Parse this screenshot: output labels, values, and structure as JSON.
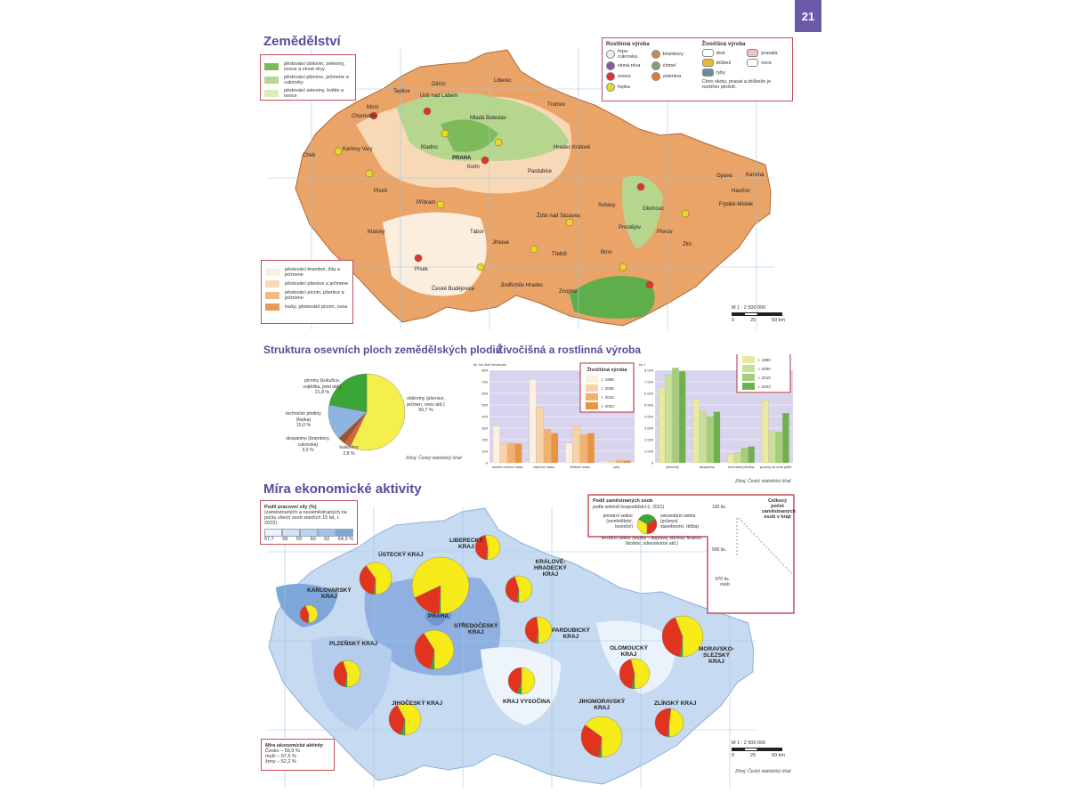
{
  "page_number": "21",
  "agriculture": {
    "title": "Zemědělství",
    "legend_top": [
      "pěstování obilovin, zeleniny, ovoce a vinné révy",
      "pěstování pšenice, ječmene a cukrovky",
      "pěstování zeleniny, květin a ovoce"
    ],
    "legend_top_colors": [
      "#7dbb5a",
      "#b5d68c",
      "#dcebb8"
    ],
    "legend_bottom": [
      "pěstování brambor, žita a ječmene",
      "pěstování pšenice a ječmene",
      "pěstování pícnin, pšenice a ječmene",
      "louky, pěstování pícnin, ovsa"
    ],
    "legend_bottom_colors": [
      "#fbeede",
      "#f7d9b8",
      "#f0b982",
      "#e59a55"
    ],
    "symbols": {
      "plant_title": "Rostlinná výroba",
      "plants": [
        "řepa cukrovka",
        "brambory",
        "vinná réva",
        "chmel",
        "ovoce",
        "zelenina",
        "řepka"
      ],
      "animal_title": "Živočišná výroba",
      "animals": [
        "skot",
        "prasata",
        "drůbež",
        "ovce",
        "ryby"
      ],
      "note": "Chov skotu, prasat a drůbeže je rozšířen plošně."
    },
    "cities": [
      "Cheb",
      "Karlovy Vary",
      "Chomutov",
      "Most",
      "Teplice",
      "Ústí nad Labem",
      "Děčín",
      "Liberec",
      "Mladá Boleslav",
      "Kladno",
      "PRAHA",
      "Kolín",
      "Hradec Králové",
      "Pardubice",
      "Trutnov",
      "Plzeň",
      "Příbram",
      "Klatovy",
      "Písek",
      "Tábor",
      "České Budějovice",
      "Jindřichův Hradec",
      "Jihlava",
      "Žďár nad Sázavou",
      "Třebíč",
      "Brno",
      "Znojmo",
      "Olomouc",
      "Prostějov",
      "Přerov",
      "Zlín",
      "Opava",
      "Karviná",
      "Havířov",
      "Frýdek-Místek",
      "Svitavy"
    ],
    "scale": {
      "ratio": "M 1 : 2 500 000",
      "ticks": [
        "0",
        "25",
        "50 km"
      ]
    }
  },
  "crops_pie": {
    "title": "Struktura osevních ploch zemědělských plodin",
    "source": "Zdroj: Český statistický úřad",
    "chart_data": {
      "type": "pie",
      "slices": [
        {
          "label": "obiloviny (pšenice, ječmen, oves atd.)",
          "value": 56.7,
          "text": "56,7 %",
          "color": "#f4ef4a"
        },
        {
          "label": "luskoviny",
          "value": 2.8,
          "text": "2,8 %",
          "color": "#d9643a"
        },
        {
          "label": "okopaniny (brambory, cukrovka)",
          "value": 3.0,
          "text": "3,0 %",
          "color": "#a0522d"
        },
        {
          "label": "technické plodiny (řepka)",
          "value": 15.0,
          "text": "15,0 %",
          "color": "#8fb4e0"
        },
        {
          "label": "pícniny (kukuřice, vojtěška, jetel atd.)",
          "value": 21.8,
          "text": "21,8 %",
          "color": "#3aa635"
        }
      ]
    }
  },
  "production": {
    "title": "Živočišná a rostlinná výroba",
    "source": "Zdroj: Český statistický úřad",
    "chart_data": [
      {
        "type": "bar",
        "legend_title": "Živočišná výroba",
        "ylabel": "tis. tun živé hmotnosti",
        "ylim": [
          0,
          800
        ],
        "yticks": [
          "0",
          "100",
          "200",
          "300",
          "400",
          "500",
          "600",
          "700",
          "800"
        ],
        "categories": [
          "hovězí a telecí maso",
          "vepřové maso",
          "drůbeží maso",
          "ryby"
        ],
        "series": [
          {
            "name": "r. 1995",
            "color": "#fdf0e0",
            "values": [
              320,
              720,
              170,
              15
            ]
          },
          {
            "name": "r. 2005",
            "color": "#f8d3a8",
            "values": [
              165,
              480,
              320,
              20
            ]
          },
          {
            "name": "r. 2015",
            "color": "#f2b26e",
            "values": [
              170,
              290,
              245,
              20
            ]
          },
          {
            "name": "r. 2023",
            "color": "#eb943e",
            "values": [
              165,
              255,
              255,
              18
            ]
          }
        ],
        "legend": "top-right"
      },
      {
        "type": "bar",
        "legend_title": "Rostlinná výroba",
        "ylabel": "tis. t",
        "ylim": [
          0,
          8000
        ],
        "yticks": [
          "0",
          "1 000",
          "2 000",
          "3 000",
          "4 000",
          "5 000",
          "6 000",
          "7 000",
          "8 000"
        ],
        "categories": [
          "obiloviny",
          "okopaniny",
          "technické plodiny",
          "pícniny na orné půdě"
        ],
        "series": [
          {
            "name": "r. 1990",
            "color": "#e6ec9e",
            "values": [
              6500,
              5500,
              700,
              5400
            ]
          },
          {
            "name": "r. 2000",
            "color": "#c7e09a",
            "values": [
              7600,
              4500,
              900,
              2700
            ]
          },
          {
            "name": "r. 2015",
            "color": "#a3cf78",
            "values": [
              8200,
              4000,
              1300,
              2650
            ]
          },
          {
            "name": "r. 2023",
            "color": "#6fb04e",
            "values": [
              7900,
              4400,
              1400,
              4300
            ]
          }
        ],
        "legend": "top-right"
      }
    ]
  },
  "economic": {
    "title": "Míra ekonomické aktivity",
    "legend_title": "Podíl pracovní síly (%)",
    "legend_sub": "(zaměstnaných a nezaměstnaných na počtu všech osob starších 15 let, r. 2022)",
    "scale_labels": [
      "57,7",
      "58",
      "59",
      "60",
      "62",
      "64,3 %"
    ],
    "scale_colors": [
      "#eaf2fb",
      "#d3e3f5",
      "#bcd3ee",
      "#a3c2e6",
      "#7ea6d8"
    ],
    "pie_legend": {
      "title": "Podíl zaměstnaných osob",
      "sub": "podle sektorů hospodářství (r. 2021)",
      "primary": "primární sektor (zemědělství, lesnictví)",
      "secondary": "sekundární sektor (průmysl, stavebnictví, těžba)",
      "tertiary": "terciární sektor (služby – doprava, obchod, finance, školství, zdravotnictví atd.)",
      "size_title": "Celkový počet zaměstnaných osob v kraji",
      "sizes": [
        "100 tis.",
        "500 tis.",
        "870 tis. osob"
      ]
    },
    "sector_colors": {
      "primary": "#3aa635",
      "secondary": "#e2331f",
      "tertiary": "#f6ea18"
    },
    "regions": [
      {
        "name": "KARLOVARSKÝ\nKRAJ",
        "shares": [
          0.02,
          0.42,
          0.56
        ]
      },
      {
        "name": "ÚSTECKÝ KRAJ",
        "shares": [
          0.02,
          0.38,
          0.6
        ]
      },
      {
        "name": "LIBERECKÝ\nKRAJ",
        "shares": [
          0.02,
          0.45,
          0.53
        ]
      },
      {
        "name": "KRÁLOVÉ-\nHRADECKÝ\nKRAJ",
        "shares": [
          0.03,
          0.42,
          0.55
        ]
      },
      {
        "name": "PRAHA",
        "shares": [
          0.01,
          0.17,
          0.82
        ]
      },
      {
        "name": "STŘEDOČESKÝ\nKRAJ",
        "shares": [
          0.03,
          0.38,
          0.59
        ]
      },
      {
        "name": "PLZEŇSKÝ KRAJ",
        "shares": [
          0.03,
          0.42,
          0.55
        ]
      },
      {
        "name": "PARDUBICKÝ\nKRAJ",
        "shares": [
          0.03,
          0.45,
          0.52
        ]
      },
      {
        "name": "JIHOČESKÝ KRAJ",
        "shares": [
          0.04,
          0.38,
          0.58
        ]
      },
      {
        "name": "KRAJ VYSOČINA",
        "shares": [
          0.05,
          0.45,
          0.5
        ]
      },
      {
        "name": "JIHOMORAVSKÝ\nKRAJ",
        "shares": [
          0.02,
          0.33,
          0.65
        ]
      },
      {
        "name": "OLOMOUCKÝ\nKRAJ",
        "shares": [
          0.03,
          0.43,
          0.54
        ]
      },
      {
        "name": "MORAVSKO-\nSLEZSKÝ\nKRAJ",
        "shares": [
          0.02,
          0.42,
          0.56
        ]
      },
      {
        "name": "ZLÍNSKÝ KRAJ",
        "shares": [
          0.02,
          0.5,
          0.48
        ]
      }
    ],
    "summary": {
      "title": "Míra ekonomické aktivity",
      "rows": [
        "Česko – 59,5 %",
        "muži – 67,5 %",
        "ženy – 52,2 %"
      ]
    },
    "scale": {
      "ratio": "M 1 : 2 500 000",
      "ticks": [
        "0",
        "25",
        "50 km"
      ]
    },
    "source": "Zdroj: Český statistický úřad"
  }
}
